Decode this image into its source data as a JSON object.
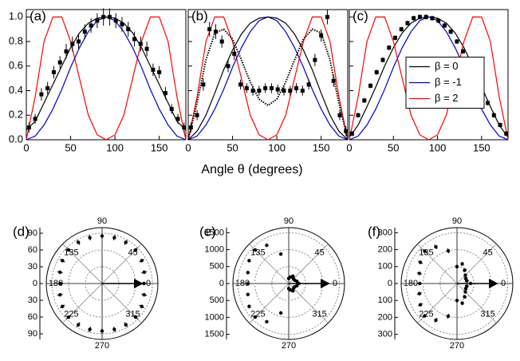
{
  "chart_data": [
    {
      "type": "line",
      "title": "(a)",
      "xlim": [
        0,
        180
      ],
      "ylim": [
        0,
        1.06
      ],
      "xticks": [
        0,
        50,
        100,
        150
      ],
      "yticks": [
        {
          "value": 0,
          "label": "0.0"
        },
        0.2,
        0.4,
        0.6,
        0.8,
        {
          "value": 1,
          "label": "1.0"
        }
      ],
      "series": [
        {
          "color": "#ff0000",
          "style": "solid",
          "x": [
            0,
            10,
            20,
            30,
            40,
            50,
            60,
            70,
            80,
            90,
            100,
            110,
            120,
            130,
            140,
            150,
            160,
            170,
            180
          ],
          "values": [
            0,
            0.35,
            0.8,
            1.0,
            1.0,
            0.8,
            0.5,
            0.2,
            0.04,
            0,
            0.04,
            0.2,
            0.5,
            0.8,
            1.0,
            1.0,
            0.8,
            0.35,
            0
          ]
        },
        {
          "color": "#0000cc",
          "style": "solid",
          "x": [
            0,
            10,
            20,
            30,
            40,
            50,
            60,
            70,
            80,
            90,
            100,
            110,
            120,
            130,
            140,
            150,
            160,
            170,
            180
          ],
          "values": [
            0,
            0.03,
            0.12,
            0.25,
            0.41,
            0.59,
            0.75,
            0.88,
            0.97,
            1,
            0.97,
            0.88,
            0.75,
            0.59,
            0.41,
            0.25,
            0.12,
            0.03,
            0
          ]
        },
        {
          "color": "#000000",
          "style": "solid",
          "x": [
            0,
            10,
            20,
            30,
            40,
            50,
            60,
            70,
            80,
            90,
            100,
            110,
            120,
            130,
            140,
            150,
            160,
            170,
            180
          ],
          "values": [
            0.08,
            0.15,
            0.3,
            0.45,
            0.6,
            0.75,
            0.87,
            0.95,
            0.99,
            1,
            0.99,
            0.95,
            0.87,
            0.75,
            0.6,
            0.45,
            0.3,
            0.15,
            0.08
          ]
        },
        {
          "color": "#000000",
          "style": "points",
          "x": [
            3,
            10,
            17,
            24,
            31,
            38,
            45,
            52,
            59,
            66,
            73,
            80,
            87,
            94,
            101,
            108,
            115,
            122,
            129,
            136,
            143,
            150,
            157,
            164,
            171,
            178
          ],
          "values": [
            0.1,
            0.17,
            0.37,
            0.42,
            0.55,
            0.63,
            0.72,
            0.78,
            0.8,
            0.88,
            0.93,
            0.97,
            1.0,
            1.0,
            0.97,
            0.94,
            0.9,
            0.82,
            0.78,
            0.74,
            0.57,
            0.55,
            0.38,
            0.25,
            0.17,
            0.1
          ],
          "errors": [
            0.04,
            0.04,
            0.05,
            0.05,
            0.05,
            0.05,
            0.06,
            0.06,
            0.06,
            0.06,
            0.06,
            0.06,
            0.07,
            0.07,
            0.06,
            0.06,
            0.06,
            0.06,
            0.06,
            0.06,
            0.05,
            0.05,
            0.05,
            0.04,
            0.04,
            0.04
          ]
        }
      ]
    },
    {
      "type": "line",
      "title": "(b)",
      "xlabel": "Angle θ (degrees)",
      "xlim": [
        0,
        180
      ],
      "ylim": [
        0,
        1.06
      ],
      "xticks": [
        0,
        50,
        100,
        150
      ],
      "yticks": [
        0,
        0.2,
        0.4,
        0.6,
        0.8,
        1
      ],
      "ytick_labels": false,
      "series": [
        {
          "color": "#ff0000",
          "style": "solid",
          "x": [
            0,
            10,
            20,
            30,
            40,
            50,
            60,
            70,
            80,
            90,
            100,
            110,
            120,
            130,
            140,
            150,
            160,
            170,
            180
          ],
          "values": [
            0,
            0.35,
            0.8,
            1.0,
            1.0,
            0.8,
            0.5,
            0.2,
            0.04,
            0,
            0.04,
            0.2,
            0.5,
            0.8,
            1.0,
            1.0,
            0.8,
            0.35,
            0
          ]
        },
        {
          "color": "#0000cc",
          "style": "solid",
          "x": [
            0,
            10,
            20,
            30,
            40,
            50,
            60,
            70,
            80,
            90,
            100,
            110,
            120,
            130,
            140,
            150,
            160,
            170,
            180
          ],
          "values": [
            0,
            0.03,
            0.12,
            0.25,
            0.41,
            0.59,
            0.75,
            0.88,
            0.97,
            1,
            0.97,
            0.88,
            0.75,
            0.59,
            0.41,
            0.25,
            0.12,
            0.03,
            0
          ]
        },
        {
          "color": "#000000",
          "style": "solid",
          "x": [
            0,
            10,
            20,
            30,
            40,
            50,
            60,
            70,
            80,
            90,
            100,
            110,
            120,
            130,
            140,
            150,
            160,
            170,
            180
          ],
          "values": [
            0,
            0.07,
            0.2,
            0.38,
            0.57,
            0.73,
            0.86,
            0.95,
            0.99,
            1,
            0.99,
            0.95,
            0.86,
            0.73,
            0.57,
            0.38,
            0.2,
            0.07,
            0
          ]
        },
        {
          "color": "#000000",
          "style": "dotted",
          "x": [
            0,
            10,
            20,
            30,
            40,
            50,
            60,
            70,
            80,
            90,
            100,
            110,
            120,
            130,
            140,
            150,
            160,
            170,
            180
          ],
          "values": [
            0,
            0.3,
            0.65,
            0.87,
            0.9,
            0.82,
            0.65,
            0.47,
            0.33,
            0.28,
            0.33,
            0.47,
            0.65,
            0.82,
            0.9,
            0.87,
            0.65,
            0.3,
            0
          ]
        },
        {
          "color": "#000000",
          "style": "points",
          "x": [
            3,
            10,
            17,
            24,
            31,
            38,
            45,
            52,
            59,
            66,
            73,
            80,
            87,
            94,
            101,
            108,
            115,
            122,
            129,
            136,
            143,
            150,
            157,
            164,
            171,
            178
          ],
          "values": [
            0.1,
            0.2,
            0.45,
            0.9,
            0.88,
            0.8,
            0.6,
            0.7,
            0.45,
            0.42,
            0.4,
            0.4,
            0.42,
            0.42,
            0.41,
            0.4,
            0.4,
            0.42,
            0.4,
            0.45,
            0.65,
            0.85,
            1.0,
            0.48,
            0.2,
            0.07
          ],
          "errors": [
            0.04,
            0.04,
            0.05,
            0.06,
            0.06,
            0.05,
            0.05,
            0.05,
            0.04,
            0.04,
            0.04,
            0.04,
            0.04,
            0.04,
            0.04,
            0.04,
            0.04,
            0.04,
            0.04,
            0.04,
            0.05,
            0.05,
            0.06,
            0.05,
            0.04,
            0.04
          ]
        }
      ]
    },
    {
      "type": "line",
      "title": "(c)",
      "legend": "center right",
      "xlim": [
        0,
        180
      ],
      "ylim": [
        0,
        1.06
      ],
      "xticks": [
        0,
        50,
        100,
        150
      ],
      "yticks": [
        0,
        0.2,
        0.4,
        0.6,
        0.8,
        1
      ],
      "ytick_labels": false,
      "series": [
        {
          "name": "β = 0",
          "color": "#000000",
          "style": "solid",
          "x": [
            0,
            10,
            20,
            30,
            40,
            50,
            60,
            70,
            80,
            90,
            100,
            110,
            120,
            130,
            140,
            150,
            160,
            170,
            180
          ],
          "values": [
            0.02,
            0.12,
            0.27,
            0.43,
            0.6,
            0.75,
            0.87,
            0.95,
            0.99,
            1,
            0.99,
            0.95,
            0.87,
            0.75,
            0.6,
            0.43,
            0.27,
            0.12,
            0.02
          ]
        },
        {
          "name": "β = -1",
          "color": "#0000cc",
          "style": "solid",
          "x": [
            0,
            10,
            20,
            30,
            40,
            50,
            60,
            70,
            80,
            90,
            100,
            110,
            120,
            130,
            140,
            150,
            160,
            170,
            180
          ],
          "values": [
            0,
            0.03,
            0.12,
            0.25,
            0.41,
            0.59,
            0.75,
            0.88,
            0.97,
            1,
            0.97,
            0.88,
            0.75,
            0.59,
            0.41,
            0.25,
            0.12,
            0.03,
            0
          ]
        },
        {
          "name": "β = 2",
          "color": "#ff0000",
          "style": "solid",
          "x": [
            0,
            10,
            20,
            30,
            40,
            50,
            60,
            70,
            80,
            90,
            100,
            110,
            120,
            130,
            140,
            150,
            160,
            170,
            180
          ],
          "values": [
            0,
            0.35,
            0.8,
            1.0,
            1.0,
            0.8,
            0.5,
            0.2,
            0.04,
            0,
            0.04,
            0.2,
            0.5,
            0.8,
            1.0,
            1.0,
            0.8,
            0.35,
            0
          ]
        },
        {
          "color": "#000000",
          "style": "points",
          "x": [
            3,
            10,
            17,
            24,
            31,
            38,
            45,
            52,
            59,
            66,
            73,
            80,
            87,
            94,
            101,
            108,
            115,
            122,
            129,
            136,
            143,
            150,
            157,
            164,
            171,
            178
          ],
          "values": [
            0.05,
            0.2,
            0.32,
            0.44,
            0.55,
            0.65,
            0.75,
            0.83,
            0.9,
            0.95,
            0.99,
            1.0,
            1.0,
            0.99,
            0.97,
            0.93,
            0.88,
            0.8,
            0.72,
            0.62,
            0.52,
            0.4,
            0.3,
            0.2,
            0.12,
            0.05
          ],
          "errors": [
            0.02,
            0.02,
            0.02,
            0.02,
            0.02,
            0.02,
            0.02,
            0.02,
            0.02,
            0.02,
            0.02,
            0.02,
            0.02,
            0.02,
            0.02,
            0.02,
            0.02,
            0.02,
            0.02,
            0.02,
            0.02,
            0.02,
            0.02,
            0.02,
            0.02,
            0.02
          ]
        }
      ]
    },
    {
      "type": "polar",
      "title": "(d)",
      "rlim": [
        0,
        100
      ],
      "rticks": [
        0,
        30,
        60,
        90
      ],
      "angle_ticks": [
        0,
        45,
        90,
        135,
        180,
        225,
        270,
        315
      ],
      "series": [
        {
          "color": "#000000",
          "theta": [
            0,
            15,
            30,
            45,
            60,
            75,
            90,
            105,
            120,
            135,
            150,
            165,
            180,
            195,
            210,
            225,
            240,
            255,
            270,
            285,
            300,
            315,
            330,
            345
          ],
          "values": [
            75,
            78,
            82,
            85,
            85,
            85,
            85,
            85,
            85,
            85,
            82,
            78,
            75,
            78,
            82,
            85,
            85,
            85,
            85,
            85,
            85,
            85,
            82,
            78
          ],
          "errors": [
            5,
            5,
            5,
            5,
            5,
            5,
            5,
            5,
            5,
            5,
            5,
            5,
            5,
            5,
            5,
            5,
            5,
            5,
            5,
            5,
            5,
            5,
            5,
            5
          ]
        }
      ]
    },
    {
      "type": "polar",
      "title": "(e)",
      "rlim": [
        0,
        1650
      ],
      "rticks": [
        0,
        500,
        1000,
        1500
      ],
      "angle_ticks": [
        0,
        45,
        90,
        135,
        180,
        225,
        270,
        315
      ],
      "series": [
        {
          "color": "#000000",
          "theta": [
            0,
            15,
            30,
            45,
            60,
            75,
            90,
            105,
            120,
            135,
            150,
            165,
            180,
            195,
            210,
            225,
            240,
            255,
            270,
            285,
            300,
            315,
            330,
            345
          ],
          "values": [
            300,
            250,
            200,
            200,
            250,
            200,
            150,
            900,
            1300,
            1400,
            1350,
            1250,
            1200,
            1250,
            1350,
            1400,
            1300,
            900,
            150,
            200,
            250,
            200,
            200,
            250
          ]
        }
      ]
    },
    {
      "type": "polar",
      "title": "(f)",
      "rlim": [
        0,
        330
      ],
      "rticks": [
        0,
        100,
        200,
        300
      ],
      "angle_ticks": [
        0,
        45,
        90,
        135,
        180,
        225,
        270,
        315
      ],
      "series": [
        {
          "color": "#000000",
          "theta": [
            0,
            15,
            30,
            45,
            60,
            75,
            90,
            105,
            120,
            135,
            150,
            165,
            180,
            195,
            210,
            225,
            240,
            255,
            270,
            285,
            300,
            315,
            330,
            345
          ],
          "values": [
            80,
            60,
            60,
            70,
            90,
            120,
            100,
            200,
            250,
            270,
            250,
            230,
            220,
            230,
            250,
            270,
            250,
            200,
            100,
            120,
            90,
            70,
            60,
            60
          ],
          "errors": [
            12,
            12,
            12,
            12,
            12,
            12,
            12,
            15,
            15,
            15,
            15,
            15,
            15,
            15,
            15,
            15,
            15,
            15,
            12,
            12,
            12,
            12,
            12,
            12
          ]
        }
      ]
    }
  ]
}
